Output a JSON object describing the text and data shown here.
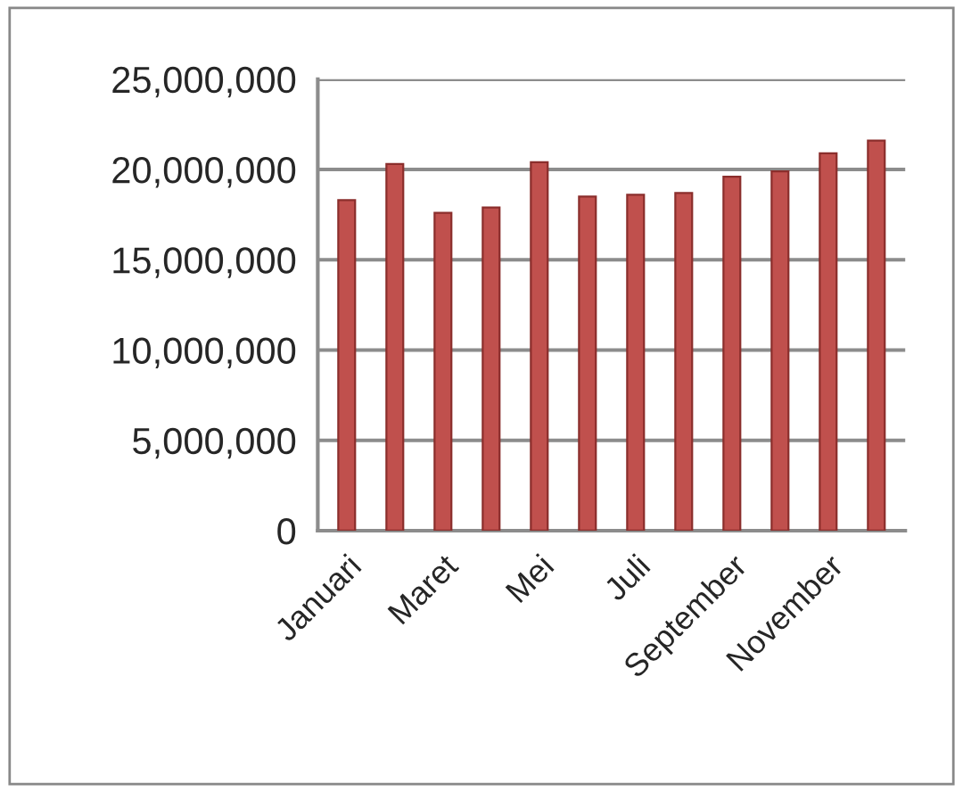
{
  "chart_data": {
    "type": "bar",
    "categories": [
      "Januari",
      null,
      "Maret",
      null,
      "Mei",
      null,
      "Juli",
      null,
      "September",
      null,
      "November",
      null
    ],
    "values": [
      18300000,
      20300000,
      17600000,
      17900000,
      20400000,
      18500000,
      18600000,
      18700000,
      19600000,
      19900000,
      20900000,
      21600000
    ],
    "color": "#c0504d",
    "ylim": [
      0,
      25000000
    ],
    "yticks": [
      {
        "value": 0,
        "label": "0"
      },
      {
        "value": 5000000,
        "label": "5,000,000"
      },
      {
        "value": 10000000,
        "label": "10,000,000"
      },
      {
        "value": 15000000,
        "label": "15,000,000"
      },
      {
        "value": 20000000,
        "label": "20,000,000"
      },
      {
        "value": 25000000,
        "label": "25,000,000"
      }
    ],
    "grid": "y",
    "legend": false
  }
}
